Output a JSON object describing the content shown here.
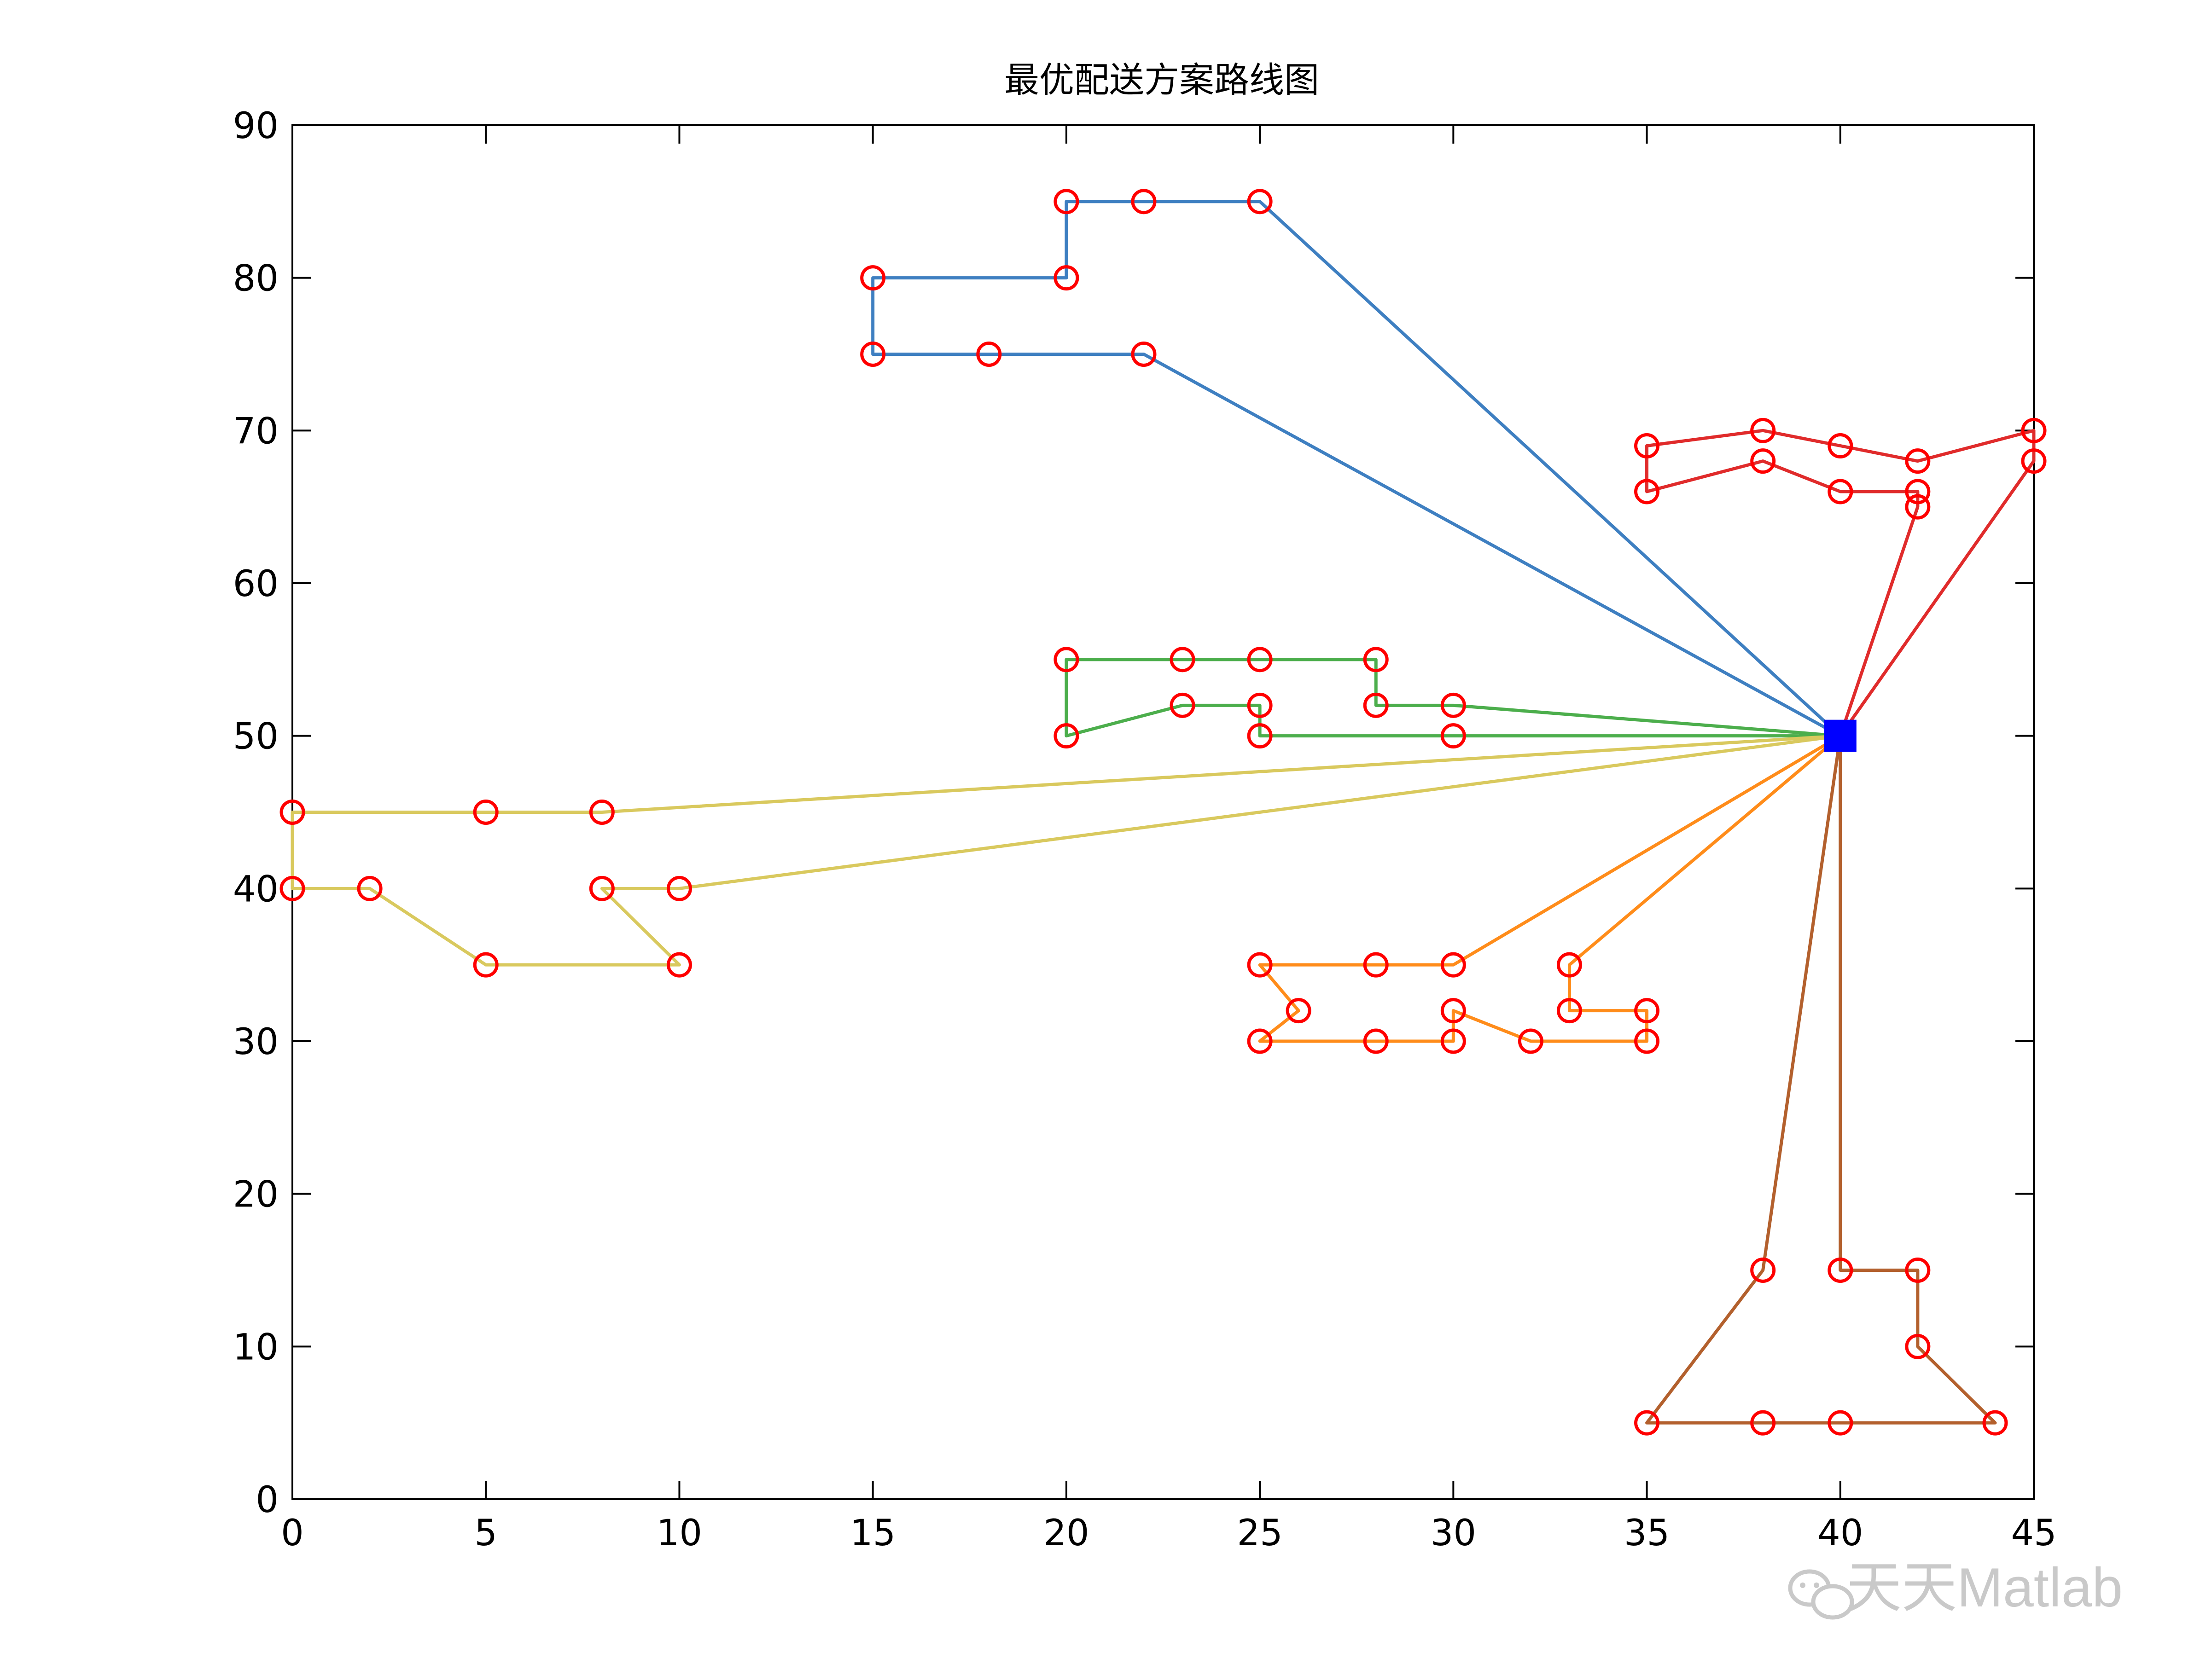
{
  "chart_data": {
    "type": "line",
    "title": "最优配送方案路线图",
    "xlabel": "",
    "ylabel": "",
    "xlim": [
      0,
      45
    ],
    "ylim": [
      0,
      90
    ],
    "xticks": [
      0,
      5,
      10,
      15,
      20,
      25,
      30,
      35,
      40,
      45
    ],
    "yticks": [
      0,
      10,
      20,
      30,
      40,
      50,
      60,
      70,
      80,
      90
    ],
    "grid": false,
    "depot": {
      "x": 40,
      "y": 50,
      "color": "#0000ff",
      "marker": "filled-square"
    },
    "customer_marker": {
      "shape": "open-circle",
      "color": "#ff0000"
    },
    "routes": [
      {
        "color": "#3e7fc1",
        "points": [
          [
            40,
            50
          ],
          [
            25,
            85
          ],
          [
            22,
            85
          ],
          [
            20,
            85
          ],
          [
            20,
            80
          ],
          [
            15,
            80
          ],
          [
            15,
            75
          ],
          [
            18,
            75
          ],
          [
            22,
            75
          ],
          [
            40,
            50
          ]
        ]
      },
      {
        "color": "#e02b2b",
        "points": [
          [
            40,
            50
          ],
          [
            42,
            65
          ],
          [
            42,
            66
          ],
          [
            40,
            66
          ],
          [
            38,
            68
          ],
          [
            35,
            66
          ],
          [
            35,
            69
          ],
          [
            38,
            70
          ],
          [
            40,
            69
          ],
          [
            42,
            68
          ],
          [
            45,
            70
          ],
          [
            45,
            68
          ],
          [
            40,
            50
          ]
        ]
      },
      {
        "color": "#4cae4c",
        "points": [
          [
            40,
            50
          ],
          [
            30,
            52
          ],
          [
            28,
            52
          ],
          [
            28,
            55
          ],
          [
            25,
            55
          ],
          [
            23,
            55
          ],
          [
            20,
            55
          ],
          [
            20,
            50
          ],
          [
            23,
            52
          ],
          [
            25,
            52
          ],
          [
            25,
            50
          ],
          [
            30,
            50
          ],
          [
            40,
            50
          ]
        ]
      },
      {
        "color": "#d9c95e",
        "points": [
          [
            40,
            50
          ],
          [
            8,
            45
          ],
          [
            5,
            45
          ],
          [
            0,
            45
          ],
          [
            0,
            40
          ],
          [
            2,
            40
          ],
          [
            5,
            35
          ],
          [
            10,
            35
          ],
          [
            8,
            40
          ],
          [
            10,
            40
          ],
          [
            40,
            50
          ]
        ]
      },
      {
        "color": "#ff8c1a",
        "points": [
          [
            40,
            50
          ],
          [
            30,
            35
          ],
          [
            28,
            35
          ],
          [
            25,
            35
          ],
          [
            26,
            32
          ],
          [
            25,
            30
          ],
          [
            28,
            30
          ],
          [
            30,
            30
          ],
          [
            30,
            32
          ],
          [
            32,
            30
          ],
          [
            35,
            30
          ],
          [
            35,
            32
          ],
          [
            33,
            32
          ],
          [
            33,
            35
          ],
          [
            40,
            50
          ]
        ]
      },
      {
        "color": "#b3602d",
        "points": [
          [
            40,
            50
          ],
          [
            40,
            15
          ],
          [
            42,
            15
          ],
          [
            42,
            10
          ],
          [
            44,
            5
          ],
          [
            40,
            5
          ],
          [
            38,
            5
          ],
          [
            35,
            5
          ],
          [
            38,
            15
          ],
          [
            40,
            50
          ]
        ]
      }
    ]
  },
  "watermark": {
    "text": "天天Matlab"
  }
}
